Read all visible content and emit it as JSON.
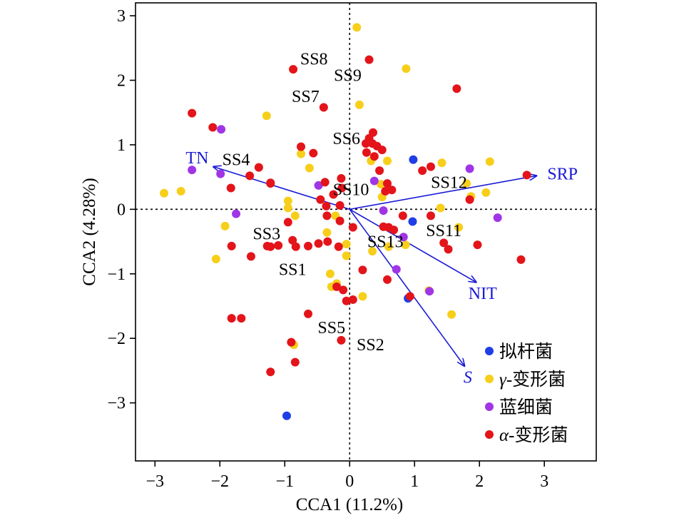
{
  "chart_data": {
    "type": "scatter",
    "title": "",
    "xlabel": "CCA1 (11.2%)",
    "ylabel": "CCA2 (4.28%)",
    "xlim": [
      -3.3,
      3.8
    ],
    "ylim": [
      -3.9,
      3.2
    ],
    "xticks": [
      -3,
      -2,
      -1,
      0,
      1,
      2,
      3
    ],
    "xtick_labels": [
      "−3",
      "−2",
      "−1",
      "0",
      "1",
      "2",
      "3"
    ],
    "yticks": [
      -3,
      -2,
      -1,
      0,
      1,
      2,
      3
    ],
    "ytick_labels": [
      "−3",
      "−2",
      "−1",
      "0",
      "1",
      "2",
      "3"
    ],
    "reference_lines": {
      "x": 0,
      "y": 0,
      "style": "dotted"
    },
    "legend_placement": "bottom-right",
    "series": [
      {
        "name": "拟杆菌",
        "color": "#1f3ee6",
        "points": [
          [
            0.98,
            0.77
          ],
          [
            0.97,
            -0.19
          ],
          [
            0.9,
            -1.38
          ],
          [
            -0.97,
            -3.2
          ]
        ]
      },
      {
        "name": "γ-变形菌",
        "color": "#f7cf1b",
        "points": [
          [
            0.11,
            2.82
          ],
          [
            0.87,
            2.18
          ],
          [
            0.15,
            1.62
          ],
          [
            -1.28,
            1.45
          ],
          [
            -2.86,
            0.25
          ],
          [
            -2.6,
            0.28
          ],
          [
            -0.95,
            0.13
          ],
          [
            -0.95,
            0.02
          ],
          [
            -0.84,
            -0.1
          ],
          [
            -1.92,
            -0.26
          ],
          [
            -2.06,
            -0.77
          ],
          [
            -0.62,
            0.64
          ],
          [
            -0.75,
            0.86
          ],
          [
            0.33,
            0.75
          ],
          [
            0.58,
            0.75
          ],
          [
            0.48,
            0.39
          ],
          [
            0.5,
            0.19
          ],
          [
            1.42,
            0.72
          ],
          [
            1.8,
            0.4
          ],
          [
            1.87,
            0.2
          ],
          [
            2.1,
            0.26
          ],
          [
            2.16,
            0.74
          ],
          [
            1.4,
            0.02
          ],
          [
            1.68,
            -0.28
          ],
          [
            -0.35,
            -0.36
          ],
          [
            -0.05,
            -0.54
          ],
          [
            -0.05,
            -0.72
          ],
          [
            0.35,
            -0.65
          ],
          [
            0.6,
            -0.58
          ],
          [
            0.86,
            -0.55
          ],
          [
            -0.3,
            -1.0
          ],
          [
            -0.28,
            -1.2
          ],
          [
            -0.2,
            -1.15
          ],
          [
            0.2,
            -1.35
          ],
          [
            1.22,
            -1.26
          ],
          [
            1.57,
            -1.63
          ],
          [
            -0.86,
            -2.1
          ],
          [
            -0.22,
            -0.1
          ]
        ]
      },
      {
        "name": "蓝细菌",
        "color": "#a035e6",
        "points": [
          [
            -1.98,
            1.24
          ],
          [
            -2.43,
            0.61
          ],
          [
            -1.99,
            0.55
          ],
          [
            -1.75,
            -0.07
          ],
          [
            -0.48,
            0.37
          ],
          [
            0.38,
            0.44
          ],
          [
            0.52,
            -0.02
          ],
          [
            1.85,
            0.63
          ],
          [
            2.28,
            -0.13
          ],
          [
            0.83,
            -0.43
          ],
          [
            0.72,
            -0.93
          ],
          [
            1.23,
            -1.27
          ]
        ]
      },
      {
        "name": "α-变形菌",
        "color": "#e3141a",
        "points": [
          [
            -0.87,
            2.17
          ],
          [
            0.3,
            2.32
          ],
          [
            -0.4,
            1.58
          ],
          [
            1.65,
            1.87
          ],
          [
            -2.43,
            1.49
          ],
          [
            -2.11,
            1.27
          ],
          [
            -0.75,
            0.97
          ],
          [
            -0.56,
            0.87
          ],
          [
            -1.4,
            0.65
          ],
          [
            -1.54,
            0.52
          ],
          [
            -1.22,
            0.41
          ],
          [
            -1.83,
            0.33
          ],
          [
            -0.38,
            0.42
          ],
          [
            -0.13,
            0.48
          ],
          [
            0.36,
            1.19
          ],
          [
            0.3,
            1.1
          ],
          [
            0.25,
            1.02
          ],
          [
            0.35,
            1.02
          ],
          [
            0.42,
            0.98
          ],
          [
            0.5,
            0.92
          ],
          [
            0.26,
            0.88
          ],
          [
            0.38,
            0.82
          ],
          [
            0.46,
            0.6
          ],
          [
            0.58,
            0.4
          ],
          [
            0.55,
            0.28
          ],
          [
            0.65,
            0.3
          ],
          [
            1.12,
            0.6
          ],
          [
            1.25,
            0.66
          ],
          [
            -0.12,
            0.33
          ],
          [
            -0.25,
            0.23
          ],
          [
            -0.45,
            0.15
          ],
          [
            -0.36,
            0.05
          ],
          [
            -0.15,
            0.06
          ],
          [
            -0.35,
            -0.1
          ],
          [
            -0.95,
            -0.2
          ],
          [
            -0.88,
            -0.48
          ],
          [
            -1.1,
            -0.56
          ],
          [
            -1.22,
            -0.58
          ],
          [
            -1.27,
            -0.57
          ],
          [
            -1.52,
            -0.73
          ],
          [
            -1.82,
            -0.57
          ],
          [
            -0.83,
            -0.58
          ],
          [
            -0.64,
            -0.57
          ],
          [
            -0.48,
            -0.53
          ],
          [
            -0.34,
            -0.5
          ],
          [
            -0.17,
            -0.58
          ],
          [
            -0.15,
            -0.18
          ],
          [
            0.05,
            -0.28
          ],
          [
            0.52,
            -0.27
          ],
          [
            0.6,
            -0.28
          ],
          [
            0.68,
            -0.32
          ],
          [
            0.82,
            -0.1
          ],
          [
            1.25,
            -0.1
          ],
          [
            1.45,
            -0.52
          ],
          [
            1.52,
            -0.62
          ],
          [
            1.97,
            -0.55
          ],
          [
            2.64,
            -0.78
          ],
          [
            0.2,
            -0.94
          ],
          [
            0.58,
            -1.09
          ],
          [
            -0.2,
            -1.2
          ],
          [
            -0.1,
            -1.25
          ],
          [
            -0.05,
            -1.42
          ],
          [
            0.05,
            -1.4
          ],
          [
            0.93,
            -1.35
          ],
          [
            -0.64,
            -1.62
          ],
          [
            -1.82,
            -1.69
          ],
          [
            -1.67,
            -1.69
          ],
          [
            -0.13,
            -2.03
          ],
          [
            -0.9,
            -2.06
          ],
          [
            -0.84,
            -2.37
          ],
          [
            -1.22,
            -2.52
          ],
          [
            2.73,
            0.53
          ],
          [
            -1.22,
            0.4
          ],
          [
            1.85,
            0.15
          ]
        ]
      }
    ],
    "vectors": [
      {
        "label": "TN",
        "x": -2.1,
        "y": 0.66,
        "label_x": -2.35,
        "label_y": 0.8
      },
      {
        "label": "SRP",
        "x": 2.88,
        "y": 0.52,
        "label_x": 3.28,
        "label_y": 0.55
      },
      {
        "label": "NIT",
        "x": 1.95,
        "y": -1.13,
        "label_x": 2.05,
        "label_y": -1.3
      },
      {
        "label": "S",
        "x": 1.77,
        "y": -2.43,
        "label_x": 1.82,
        "label_y": -2.6
      }
    ],
    "site_labels": [
      {
        "text": "SS8",
        "x": -0.55,
        "y": 2.33
      },
      {
        "text": "SS9",
        "x": -0.03,
        "y": 2.08
      },
      {
        "text": "SS7",
        "x": -0.68,
        "y": 1.75
      },
      {
        "text": "SS6",
        "x": -0.05,
        "y": 1.1
      },
      {
        "text": "SS4",
        "x": -1.75,
        "y": 0.77
      },
      {
        "text": "SS10",
        "x": 0.02,
        "y": 0.31
      },
      {
        "text": "SS12",
        "x": 1.53,
        "y": 0.42
      },
      {
        "text": "SS3",
        "x": -1.28,
        "y": -0.38
      },
      {
        "text": "SS11",
        "x": 1.45,
        "y": -0.33
      },
      {
        "text": "SS13",
        "x": 0.55,
        "y": -0.5
      },
      {
        "text": "SS1",
        "x": -0.88,
        "y": -0.93
      },
      {
        "text": "SS5",
        "x": -0.28,
        "y": -1.83
      },
      {
        "text": "SS2",
        "x": 0.32,
        "y": -2.1
      }
    ]
  }
}
